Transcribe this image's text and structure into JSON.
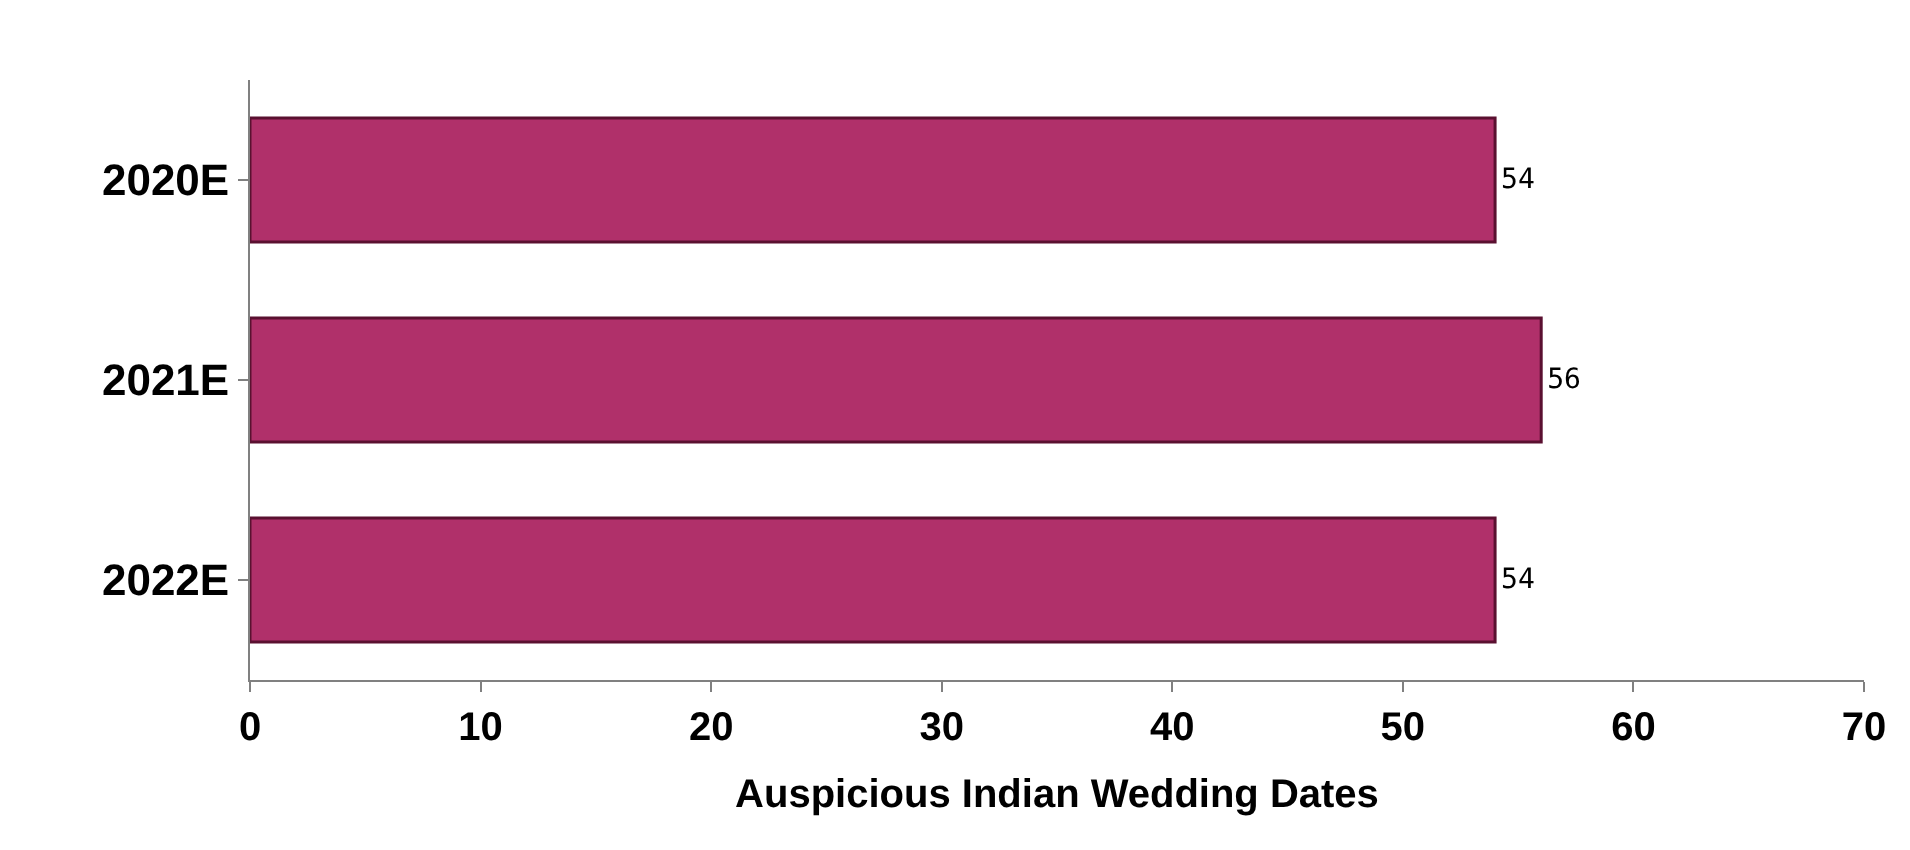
{
  "chart_data": {
    "type": "bar",
    "orientation": "horizontal",
    "xlabel": "Auspicious Indian Wedding Dates",
    "categories": [
      "2020E",
      "2021E",
      "2022E"
    ],
    "values": [
      54,
      56,
      54
    ],
    "color": "#b0306a",
    "xlim": [
      0,
      70
    ],
    "xticks": [
      0,
      10,
      20,
      30,
      40,
      50,
      60,
      70
    ],
    "data_labels": true,
    "legend": false
  }
}
